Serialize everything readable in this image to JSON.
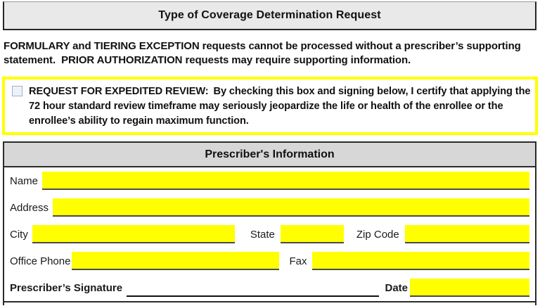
{
  "colors": {
    "highlight_yellow": "#ffff00",
    "header_gray": "#d7d7d7",
    "title_gray": "#e9e9e9",
    "border_dark": "#2b2b2b"
  },
  "title_bar": {
    "title": "Type of Coverage Determination Request"
  },
  "intro": {
    "text": "FORMULARY and TIERING EXCEPTION requests cannot be processed without a prescriber’s supporting statement.  PRIOR AUTHORIZATION requests may require supporting information."
  },
  "expedited": {
    "checkbox_state": "unchecked",
    "label": "REQUEST FOR EXPEDITED REVIEW:",
    "statement": "By checking this box and signing below, I certify that applying the 72 hour standard review timeframe may seriously jeopardize the life or health of the enrollee or the enrollee’s ability to regain maximum function."
  },
  "prescriber": {
    "header": "Prescriber's Information",
    "fields": {
      "name": {
        "label": "Name",
        "value": ""
      },
      "address": {
        "label": "Address",
        "value": ""
      },
      "city": {
        "label": "City",
        "value": ""
      },
      "state": {
        "label": "State",
        "value": ""
      },
      "zip": {
        "label": "Zip Code",
        "value": ""
      },
      "office_phone": {
        "label": "Office Phone",
        "value": ""
      },
      "fax": {
        "label": "Fax",
        "value": ""
      },
      "signature": {
        "label": "Prescriber’s Signature",
        "value": ""
      },
      "date": {
        "label": "Date",
        "value": ""
      }
    }
  }
}
